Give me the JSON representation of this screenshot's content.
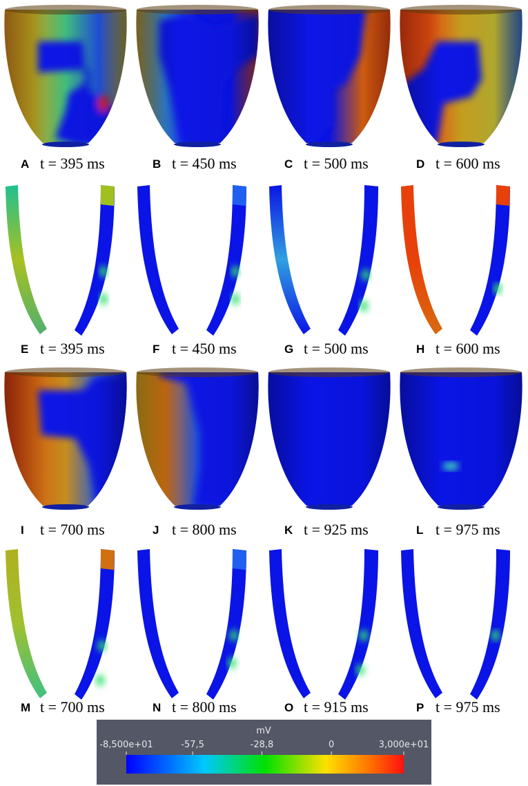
{
  "panels": [
    {
      "letter": "A",
      "time": "t = 395 ms"
    },
    {
      "letter": "B",
      "time": "t = 450 ms"
    },
    {
      "letter": "C",
      "time": "t = 500 ms"
    },
    {
      "letter": "D",
      "time": "t = 600 ms"
    },
    {
      "letter": "E",
      "time": "t = 395 ms"
    },
    {
      "letter": "F",
      "time": "t = 450 ms"
    },
    {
      "letter": "G",
      "time": "t = 500 ms"
    },
    {
      "letter": "H",
      "time": "t = 600 ms"
    },
    {
      "letter": "I",
      "time": "t = 700 ms"
    },
    {
      "letter": "J",
      "time": "t = 800 ms"
    },
    {
      "letter": "K",
      "time": "t = 925 ms"
    },
    {
      "letter": "L",
      "time": "t = 975 ms"
    },
    {
      "letter": "M",
      "time": "t = 700 ms"
    },
    {
      "letter": "N",
      "time": "t = 800 ms"
    },
    {
      "letter": "O",
      "time": "t = 915 ms"
    },
    {
      "letter": "P",
      "time": "t = 975 ms"
    }
  ],
  "colorbar": {
    "title": "mV",
    "range": [
      -85,
      30
    ],
    "ticks": [
      {
        "value": -85,
        "label": "-8,500e+01"
      },
      {
        "value": -57.5,
        "label": "-57,5"
      },
      {
        "value": -28.8,
        "label": "-28,8"
      },
      0,
      {
        "value": 30,
        "label": "3,000e+01"
      }
    ]
  }
}
